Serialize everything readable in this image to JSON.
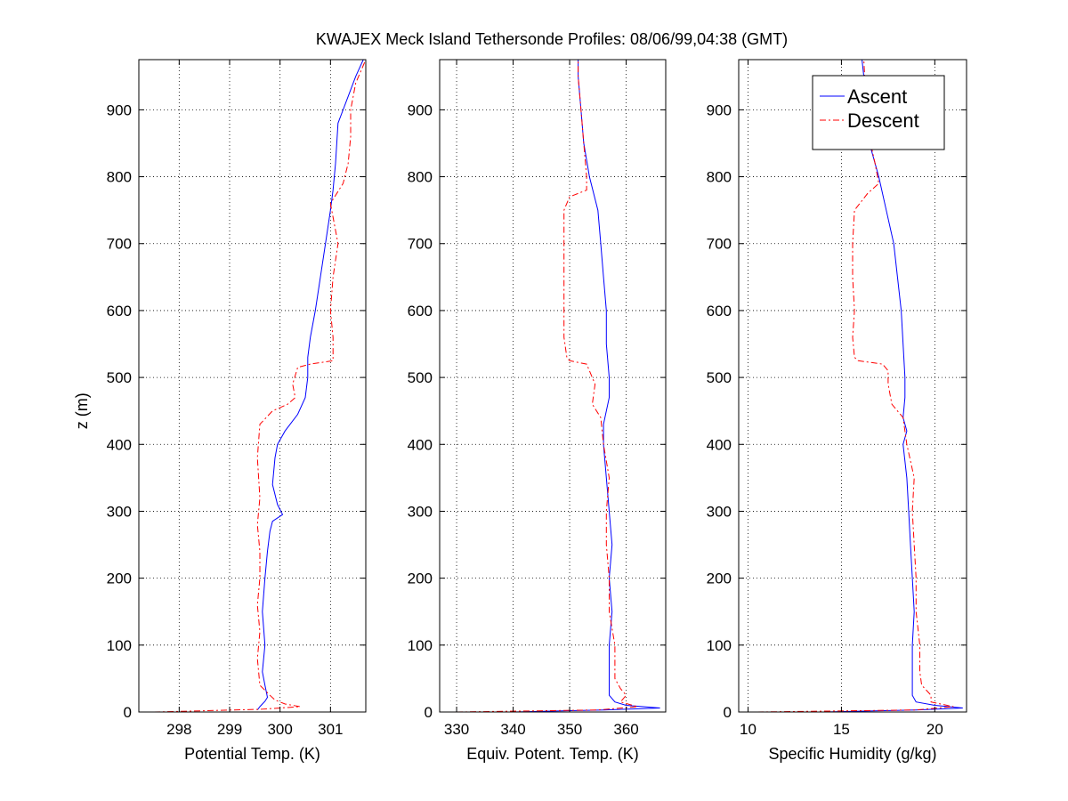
{
  "figure": {
    "title": "KWAJEX Meck Island Tethersonde Profiles: 08/06/99,04:38 (GMT)"
  },
  "legend": {
    "placement": "top-right of third panel",
    "entries": [
      {
        "label": "Ascent",
        "color": "#0000ff",
        "style": "solid"
      },
      {
        "label": "Descent",
        "color": "#ff0000",
        "style": "dash-dot"
      }
    ]
  },
  "chart_data": [
    {
      "type": "line",
      "xlabel": "Potential Temp. (K)",
      "ylabel": "z (m)",
      "xlim": [
        297.2,
        301.7
      ],
      "ylim": [
        0,
        975
      ],
      "xticks": [
        298,
        299,
        300,
        301
      ],
      "yticks": [
        0,
        100,
        200,
        300,
        400,
        500,
        600,
        700,
        800,
        900
      ],
      "grid": true,
      "series": [
        {
          "name": "Ascent",
          "color": "#0000ff",
          "points": [
            [
              299.55,
              3
            ],
            [
              299.6,
              8
            ],
            [
              299.65,
              12
            ],
            [
              299.7,
              16
            ],
            [
              299.75,
              22
            ],
            [
              299.7,
              40
            ],
            [
              299.65,
              60
            ],
            [
              299.7,
              100
            ],
            [
              299.65,
              150
            ],
            [
              299.7,
              200
            ],
            [
              299.75,
              240
            ],
            [
              299.8,
              270
            ],
            [
              299.85,
              285
            ],
            [
              300.05,
              295
            ],
            [
              299.95,
              310
            ],
            [
              299.85,
              340
            ],
            [
              299.9,
              380
            ],
            [
              299.95,
              400
            ],
            [
              300.1,
              420
            ],
            [
              300.35,
              445
            ],
            [
              300.5,
              470
            ],
            [
              300.55,
              500
            ],
            [
              300.55,
              530
            ],
            [
              300.6,
              560
            ],
            [
              300.7,
              600
            ],
            [
              300.8,
              650
            ],
            [
              300.9,
              700
            ],
            [
              301.0,
              750
            ],
            [
              301.05,
              780
            ],
            [
              301.1,
              820
            ],
            [
              301.15,
              880
            ],
            [
              301.35,
              920
            ],
            [
              301.5,
              950
            ],
            [
              301.65,
              975
            ]
          ]
        },
        {
          "name": "Descent",
          "color": "#ff0000",
          "points": [
            [
              297.5,
              0
            ],
            [
              299.6,
              4
            ],
            [
              300.4,
              8
            ],
            [
              300.1,
              12
            ],
            [
              299.9,
              18
            ],
            [
              299.8,
              25
            ],
            [
              299.6,
              40
            ],
            [
              299.55,
              80
            ],
            [
              299.6,
              120
            ],
            [
              299.55,
              160
            ],
            [
              299.6,
              200
            ],
            [
              299.6,
              240
            ],
            [
              299.55,
              280
            ],
            [
              299.6,
              320
            ],
            [
              299.55,
              380
            ],
            [
              299.6,
              430
            ],
            [
              299.85,
              450
            ],
            [
              300.15,
              460
            ],
            [
              300.3,
              470
            ],
            [
              300.25,
              490
            ],
            [
              300.35,
              515
            ],
            [
              300.6,
              520
            ],
            [
              301.05,
              525
            ],
            [
              301.05,
              560
            ],
            [
              301.0,
              600
            ],
            [
              301.05,
              650
            ],
            [
              301.15,
              700
            ],
            [
              301.0,
              760
            ],
            [
              301.25,
              790
            ],
            [
              301.35,
              820
            ],
            [
              301.4,
              860
            ],
            [
              301.4,
              900
            ],
            [
              301.5,
              940
            ],
            [
              301.7,
              975
            ]
          ]
        }
      ]
    },
    {
      "type": "line",
      "xlabel": "Equiv. Potent. Temp. (K)",
      "ylabel": "",
      "xlim": [
        327,
        367
      ],
      "ylim": [
        0,
        975
      ],
      "xticks": [
        330,
        340,
        350,
        360
      ],
      "yticks": [
        0,
        100,
        200,
        300,
        400,
        500,
        600,
        700,
        800,
        900
      ],
      "grid": true,
      "series": [
        {
          "name": "Ascent",
          "color": "#0000ff",
          "points": [
            [
              340,
              0
            ],
            [
              356,
              3
            ],
            [
              366,
              6
            ],
            [
              360,
              10
            ],
            [
              358,
              15
            ],
            [
              357,
              25
            ],
            [
              357,
              50
            ],
            [
              357,
              100
            ],
            [
              357.5,
              150
            ],
            [
              357,
              200
            ],
            [
              357.5,
              250
            ],
            [
              357,
              300
            ],
            [
              356.5,
              350
            ],
            [
              356,
              400
            ],
            [
              356,
              430
            ],
            [
              357,
              470
            ],
            [
              357,
              500
            ],
            [
              356.5,
              550
            ],
            [
              356.5,
              600
            ],
            [
              356,
              650
            ],
            [
              355.5,
              700
            ],
            [
              355,
              750
            ],
            [
              353.5,
              800
            ],
            [
              352.5,
              850
            ],
            [
              352,
              900
            ],
            [
              351.5,
              950
            ],
            [
              351.5,
              975
            ]
          ]
        },
        {
          "name": "Descent",
          "color": "#ff0000",
          "points": [
            [
              330,
              0
            ],
            [
              355,
              3
            ],
            [
              362,
              8
            ],
            [
              359,
              15
            ],
            [
              360,
              25
            ],
            [
              359,
              35
            ],
            [
              358,
              50
            ],
            [
              358,
              100
            ],
            [
              357,
              150
            ],
            [
              357,
              200
            ],
            [
              356.5,
              250
            ],
            [
              356.5,
              300
            ],
            [
              357,
              350
            ],
            [
              356,
              400
            ],
            [
              355.5,
              440
            ],
            [
              354,
              460
            ],
            [
              354.5,
              490
            ],
            [
              353.5,
              510
            ],
            [
              353,
              520
            ],
            [
              350,
              525
            ],
            [
              349.5,
              530
            ],
            [
              349,
              560
            ],
            [
              349,
              600
            ],
            [
              349,
              650
            ],
            [
              349,
              700
            ],
            [
              349,
              750
            ],
            [
              350,
              770
            ],
            [
              353,
              780
            ],
            [
              353,
              800
            ],
            [
              352.5,
              850
            ],
            [
              352,
              900
            ],
            [
              351.5,
              950
            ],
            [
              351.5,
              975
            ]
          ]
        }
      ]
    },
    {
      "type": "line",
      "xlabel": "Specific Humidity (g/kg)",
      "ylabel": "",
      "xlim": [
        9.5,
        21.7
      ],
      "ylim": [
        0,
        975
      ],
      "xticks": [
        10,
        15,
        20
      ],
      "yticks": [
        0,
        100,
        200,
        300,
        400,
        500,
        600,
        700,
        800,
        900
      ],
      "grid": true,
      "series": [
        {
          "name": "Ascent",
          "color": "#0000ff",
          "points": [
            [
              14,
              0
            ],
            [
              19,
              3
            ],
            [
              21.5,
              6
            ],
            [
              20,
              10
            ],
            [
              19,
              15
            ],
            [
              18.8,
              25
            ],
            [
              18.8,
              50
            ],
            [
              18.8,
              100
            ],
            [
              18.9,
              150
            ],
            [
              18.8,
              200
            ],
            [
              18.7,
              250
            ],
            [
              18.6,
              300
            ],
            [
              18.5,
              350
            ],
            [
              18.3,
              400
            ],
            [
              18.5,
              420
            ],
            [
              18.3,
              440
            ],
            [
              18.4,
              470
            ],
            [
              18.4,
              500
            ],
            [
              18.3,
              550
            ],
            [
              18.2,
              600
            ],
            [
              18.0,
              650
            ],
            [
              17.8,
              700
            ],
            [
              17.4,
              750
            ],
            [
              17.0,
              800
            ],
            [
              16.5,
              850
            ],
            [
              16.3,
              900
            ],
            [
              16.2,
              950
            ],
            [
              16.1,
              975
            ]
          ]
        },
        {
          "name": "Descent",
          "color": "#ff0000",
          "points": [
            [
              10.5,
              0
            ],
            [
              19,
              3
            ],
            [
              21,
              8
            ],
            [
              19.8,
              15
            ],
            [
              19.8,
              25
            ],
            [
              19.3,
              40
            ],
            [
              19.2,
              60
            ],
            [
              19.2,
              100
            ],
            [
              19.0,
              150
            ],
            [
              19.0,
              200
            ],
            [
              18.9,
              250
            ],
            [
              18.8,
              300
            ],
            [
              18.9,
              350
            ],
            [
              18.5,
              400
            ],
            [
              18.3,
              440
            ],
            [
              17.7,
              460
            ],
            [
              17.5,
              490
            ],
            [
              17.5,
              510
            ],
            [
              17.2,
              520
            ],
            [
              15.9,
              525
            ],
            [
              15.7,
              530
            ],
            [
              15.6,
              560
            ],
            [
              15.7,
              600
            ],
            [
              15.6,
              650
            ],
            [
              15.6,
              700
            ],
            [
              15.7,
              750
            ],
            [
              16.4,
              775
            ],
            [
              17.0,
              790
            ],
            [
              16.8,
              820
            ],
            [
              16.4,
              870
            ],
            [
              16.3,
              920
            ],
            [
              16.2,
              975
            ]
          ]
        }
      ]
    }
  ]
}
